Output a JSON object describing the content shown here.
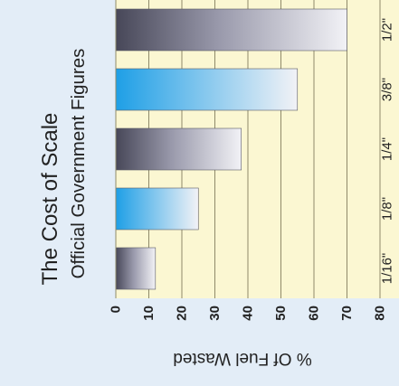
{
  "colors": {
    "page_background": "#e3edf7",
    "plot_background": "#fbf7d2",
    "gridline": "#8f8a6a",
    "text": "#222222",
    "bar_dark": "#474758",
    "bar_mid": "#9a9aac",
    "bar_light": "#f2f2f6",
    "bar_blue": "#1e9fe6"
  },
  "chart_data": {
    "type": "bar",
    "orientation": "rotated-90-counterclockwise",
    "title": "The Cost of Scale",
    "subtitle": "Official Government Figures",
    "ylabel": "% Of Fuel Wasted",
    "xlabel": "",
    "categories": [
      "1/16\"",
      "1/8\"",
      "1/4\"",
      "3/8\"",
      "1/2\""
    ],
    "values": [
      12,
      25,
      38,
      55,
      70
    ],
    "bar_styles": [
      "grey",
      "blue",
      "grey",
      "blue",
      "grey"
    ],
    "ylim": [
      0,
      80
    ],
    "yticks": [
      "0",
      "10",
      "20",
      "30",
      "40",
      "50",
      "60",
      "70",
      "80"
    ],
    "grid": true
  }
}
